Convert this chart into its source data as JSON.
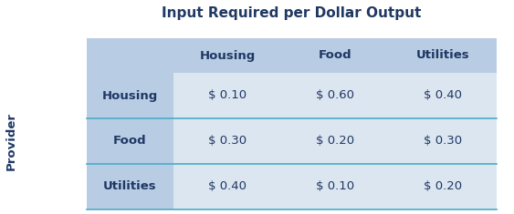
{
  "title": "Input Required per Dollar Output",
  "col_headers": [
    "Housing",
    "Food",
    "Utilities"
  ],
  "row_headers": [
    "Housing",
    "Food",
    "Utilities"
  ],
  "side_label": "Provider",
  "values": [
    [
      "$ 0.10",
      "$ 0.60",
      "$ 0.40"
    ],
    [
      "$ 0.30",
      "$ 0.20",
      "$ 0.30"
    ],
    [
      "$ 0.40",
      "$ 0.10",
      "$ 0.20"
    ]
  ],
  "header_bg": "#b8cce4",
  "row_header_bg": "#b8cce4",
  "cell_bg": "#dce6f1",
  "divider_color": "#4bacc6",
  "text_color": "#1f3864",
  "title_fontsize": 11,
  "header_fontsize": 9.5,
  "cell_fontsize": 9.5,
  "side_label_fontsize": 9.5,
  "fig_width": 5.63,
  "fig_height": 2.35,
  "dpi": 100
}
